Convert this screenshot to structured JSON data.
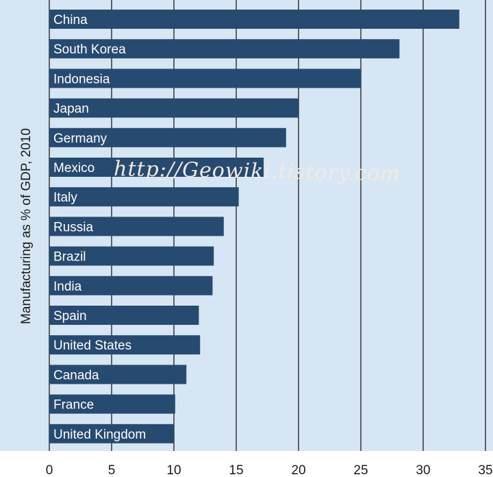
{
  "chart_data": {
    "type": "bar",
    "orientation": "horizontal",
    "ylabel": "Manufacturing as % of GDP, 2010",
    "categories": [
      "China",
      "South Korea",
      "Indonesia",
      "Japan",
      "Germany",
      "Mexico",
      "Italy",
      "Russia",
      "Brazil",
      "India",
      "Spain",
      "United States",
      "Canada",
      "France",
      "United Kingdom"
    ],
    "values": [
      32.9,
      28.1,
      25.0,
      20.0,
      19.0,
      17.2,
      15.2,
      14.0,
      13.2,
      13.1,
      12.0,
      12.1,
      11.0,
      10.1,
      10.0
    ],
    "xlim": [
      0,
      35
    ],
    "xticks": [
      "0",
      "5",
      "10",
      "15",
      "20",
      "25",
      "30",
      "35"
    ],
    "grid": "vertical",
    "watermark": "http://Geowiki.tistory.com",
    "colors": {
      "bar": "#274a70",
      "plot_bg": "#d6e6f4",
      "gridline": "#1a1a1a"
    }
  }
}
